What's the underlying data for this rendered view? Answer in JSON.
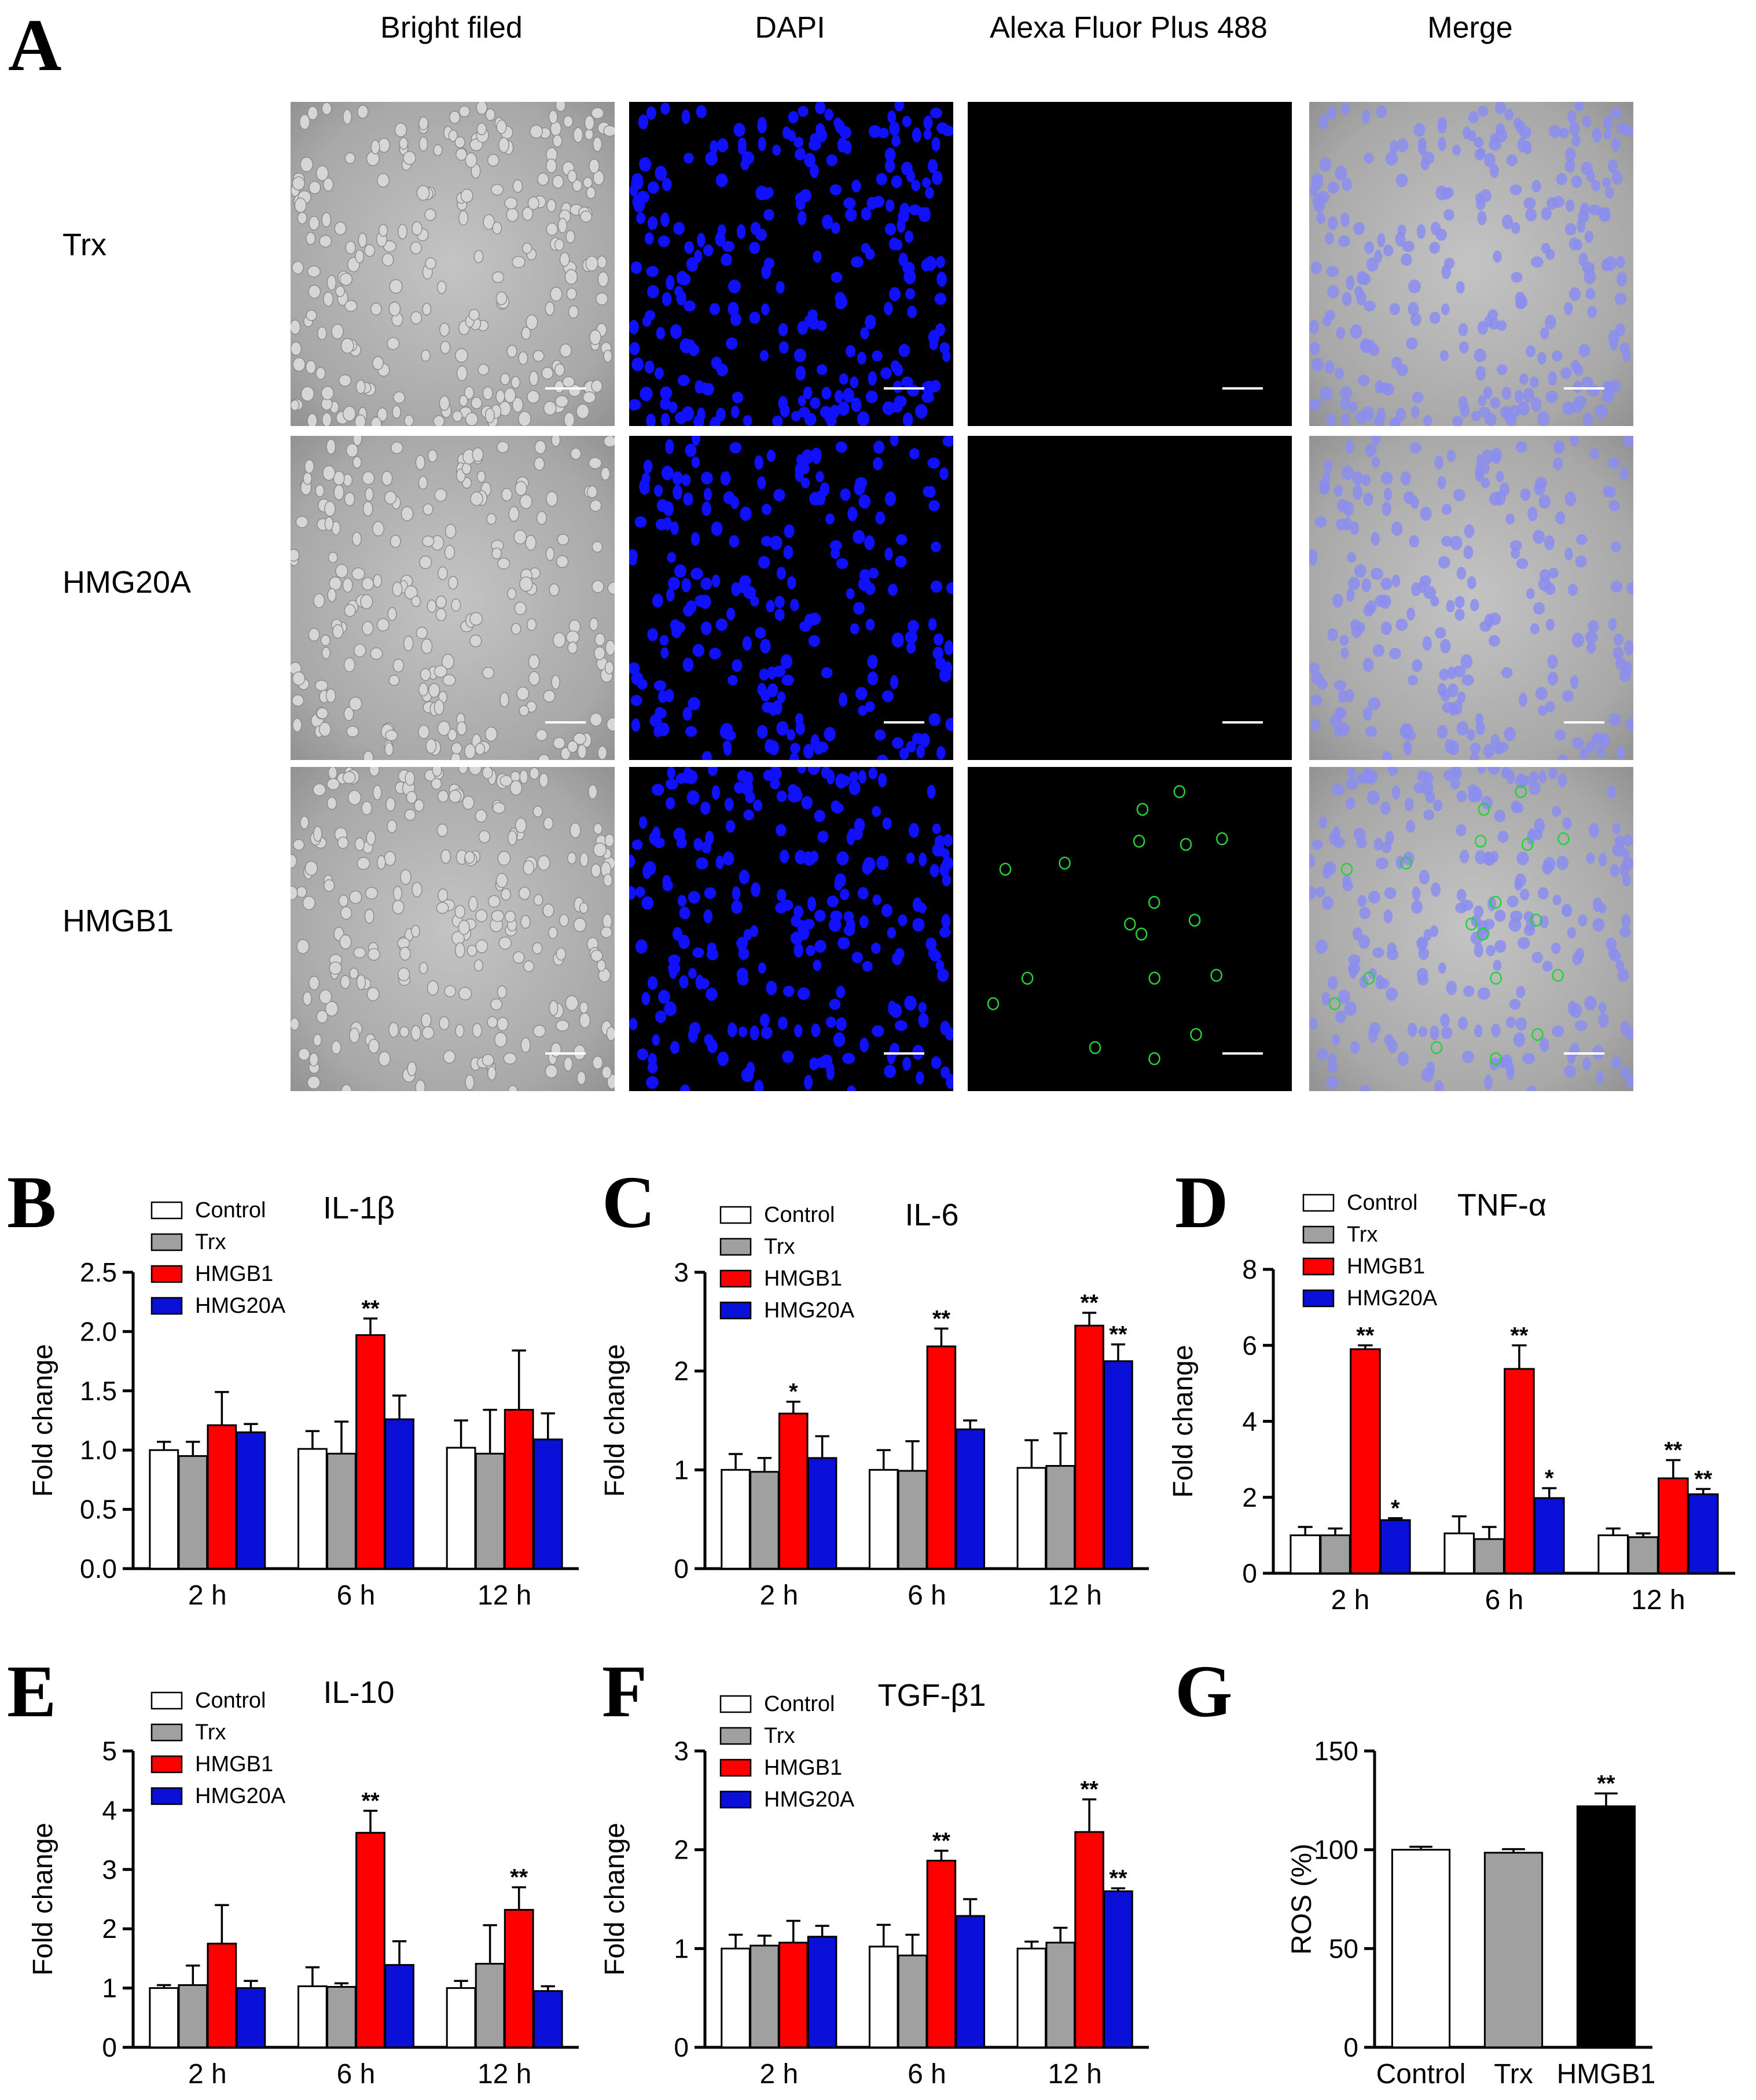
{
  "panel_letters": [
    "A",
    "B",
    "C",
    "D",
    "E",
    "F",
    "G"
  ],
  "microscopy": {
    "columns": [
      "Bright filed",
      "DAPI",
      "Alexa Fluor Plus 488",
      "Merge"
    ],
    "rows": [
      "Trx",
      "HMG20A",
      "HMGB1"
    ]
  },
  "colors": {
    "Control": "#ffffff",
    "Trx": "#a0a0a0",
    "HMGB1": "#ff0000",
    "HMG20A": "#0a10d8",
    "HMGB1_ros": "#000000",
    "dapi": "#1010ff",
    "alexa": "#26d13a"
  },
  "chart_data": [
    {
      "id": "B",
      "type": "bar",
      "title": "IL-1β",
      "ylabel": "Fold change",
      "ylim": [
        0,
        2.5
      ],
      "yticks": [
        "0.0",
        "0.5",
        "1.0",
        "1.5",
        "2.0",
        "2.5"
      ],
      "categories": [
        "2 h",
        "6 h",
        "12 h"
      ],
      "series": [
        {
          "name": "Control",
          "values": [
            1.0,
            1.01,
            1.02
          ],
          "errors": [
            0.07,
            0.15,
            0.23
          ]
        },
        {
          "name": "Trx",
          "values": [
            0.95,
            0.97,
            0.97
          ],
          "errors": [
            0.12,
            0.27,
            0.37
          ]
        },
        {
          "name": "HMGB1",
          "values": [
            1.21,
            1.97,
            1.34
          ],
          "errors": [
            0.28,
            0.14,
            0.5
          ]
        },
        {
          "name": "HMG20A",
          "values": [
            1.15,
            1.26,
            1.09
          ],
          "errors": [
            0.07,
            0.2,
            0.22
          ]
        }
      ],
      "annotations": [
        {
          "category": 1,
          "series": 2,
          "text": "**"
        }
      ]
    },
    {
      "id": "C",
      "type": "bar",
      "title": "IL-6",
      "ylabel": "Fold change",
      "ylim": [
        0,
        3
      ],
      "yticks": [
        "0",
        "1",
        "2",
        "3"
      ],
      "categories": [
        "2 h",
        "6 h",
        "12 h"
      ],
      "series": [
        {
          "name": "Control",
          "values": [
            1.0,
            1.0,
            1.02
          ],
          "errors": [
            0.16,
            0.2,
            0.28
          ]
        },
        {
          "name": "Trx",
          "values": [
            0.98,
            0.99,
            1.04
          ],
          "errors": [
            0.14,
            0.3,
            0.33
          ]
        },
        {
          "name": "HMGB1",
          "values": [
            1.57,
            2.25,
            2.46
          ],
          "errors": [
            0.12,
            0.18,
            0.13
          ]
        },
        {
          "name": "HMG20A",
          "values": [
            1.12,
            1.41,
            2.1
          ],
          "errors": [
            0.22,
            0.09,
            0.17
          ]
        }
      ],
      "annotations": [
        {
          "category": 0,
          "series": 2,
          "text": "*"
        },
        {
          "category": 1,
          "series": 2,
          "text": "**"
        },
        {
          "category": 2,
          "series": 2,
          "text": "**"
        },
        {
          "category": 2,
          "series": 3,
          "text": "**"
        }
      ]
    },
    {
      "id": "D",
      "type": "bar",
      "title": "TNF-α",
      "ylabel": "Fold change",
      "ylim": [
        0,
        8
      ],
      "yticks": [
        "0",
        "2",
        "4",
        "6",
        "8"
      ],
      "categories": [
        "2 h",
        "6 h",
        "12 h"
      ],
      "series": [
        {
          "name": "Control",
          "values": [
            1.0,
            1.05,
            1.0
          ],
          "errors": [
            0.22,
            0.45,
            0.18
          ]
        },
        {
          "name": "Trx",
          "values": [
            1.0,
            0.9,
            0.95
          ],
          "errors": [
            0.18,
            0.32,
            0.1
          ]
        },
        {
          "name": "HMGB1",
          "values": [
            5.9,
            5.38,
            2.5
          ],
          "errors": [
            0.1,
            0.62,
            0.48
          ]
        },
        {
          "name": "HMG20A",
          "values": [
            1.4,
            1.98,
            2.08
          ],
          "errors": [
            0.05,
            0.26,
            0.14
          ]
        }
      ],
      "annotations": [
        {
          "category": 0,
          "series": 2,
          "text": "**"
        },
        {
          "category": 0,
          "series": 3,
          "text": "*"
        },
        {
          "category": 1,
          "series": 2,
          "text": "**"
        },
        {
          "category": 1,
          "series": 3,
          "text": "*"
        },
        {
          "category": 2,
          "series": 2,
          "text": "**"
        },
        {
          "category": 2,
          "series": 3,
          "text": "**"
        }
      ]
    },
    {
      "id": "E",
      "type": "bar",
      "title": "IL-10",
      "ylabel": "Fold change",
      "ylim": [
        0,
        5
      ],
      "yticks": [
        "0",
        "1",
        "2",
        "3",
        "4",
        "5"
      ],
      "categories": [
        "2 h",
        "6 h",
        "12 h"
      ],
      "series": [
        {
          "name": "Control",
          "values": [
            1.0,
            1.03,
            1.0
          ],
          "errors": [
            0.05,
            0.32,
            0.12
          ]
        },
        {
          "name": "Trx",
          "values": [
            1.05,
            1.02,
            1.41
          ],
          "errors": [
            0.33,
            0.06,
            0.65
          ]
        },
        {
          "name": "HMGB1",
          "values": [
            1.75,
            3.62,
            2.32
          ],
          "errors": [
            0.65,
            0.37,
            0.38
          ]
        },
        {
          "name": "HMG20A",
          "values": [
            1.0,
            1.39,
            0.95
          ],
          "errors": [
            0.12,
            0.4,
            0.08
          ]
        }
      ],
      "annotations": [
        {
          "category": 1,
          "series": 2,
          "text": "**"
        },
        {
          "category": 2,
          "series": 2,
          "text": "**"
        }
      ]
    },
    {
      "id": "F",
      "type": "bar",
      "title": "TGF-β1",
      "ylabel": "Fold change",
      "ylim": [
        0,
        3
      ],
      "yticks": [
        "0",
        "1",
        "2",
        "3"
      ],
      "categories": [
        "2 h",
        "6 h",
        "12 h"
      ],
      "series": [
        {
          "name": "Control",
          "values": [
            1.0,
            1.02,
            1.0
          ],
          "errors": [
            0.14,
            0.22,
            0.07
          ]
        },
        {
          "name": "Trx",
          "values": [
            1.03,
            0.93,
            1.06
          ],
          "errors": [
            0.1,
            0.21,
            0.15
          ]
        },
        {
          "name": "HMGB1",
          "values": [
            1.06,
            1.89,
            2.18
          ],
          "errors": [
            0.22,
            0.1,
            0.33
          ]
        },
        {
          "name": "HMG20A",
          "values": [
            1.12,
            1.33,
            1.58
          ],
          "errors": [
            0.11,
            0.17,
            0.03
          ]
        }
      ],
      "annotations": [
        {
          "category": 1,
          "series": 2,
          "text": "**"
        },
        {
          "category": 2,
          "series": 2,
          "text": "**"
        },
        {
          "category": 2,
          "series": 3,
          "text": "**"
        }
      ]
    },
    {
      "id": "G",
      "type": "bar",
      "title": "",
      "ylabel": "ROS (%)",
      "ylim": [
        0,
        150
      ],
      "yticks": [
        "0",
        "50",
        "100",
        "150"
      ],
      "categories": [
        "Control",
        "Trx",
        "HMGB1"
      ],
      "values": [
        100,
        98.5,
        122
      ],
      "errors": [
        1.5,
        1.8,
        6.5
      ],
      "annotations": [
        {
          "category": 2,
          "text": "**"
        }
      ]
    }
  ]
}
